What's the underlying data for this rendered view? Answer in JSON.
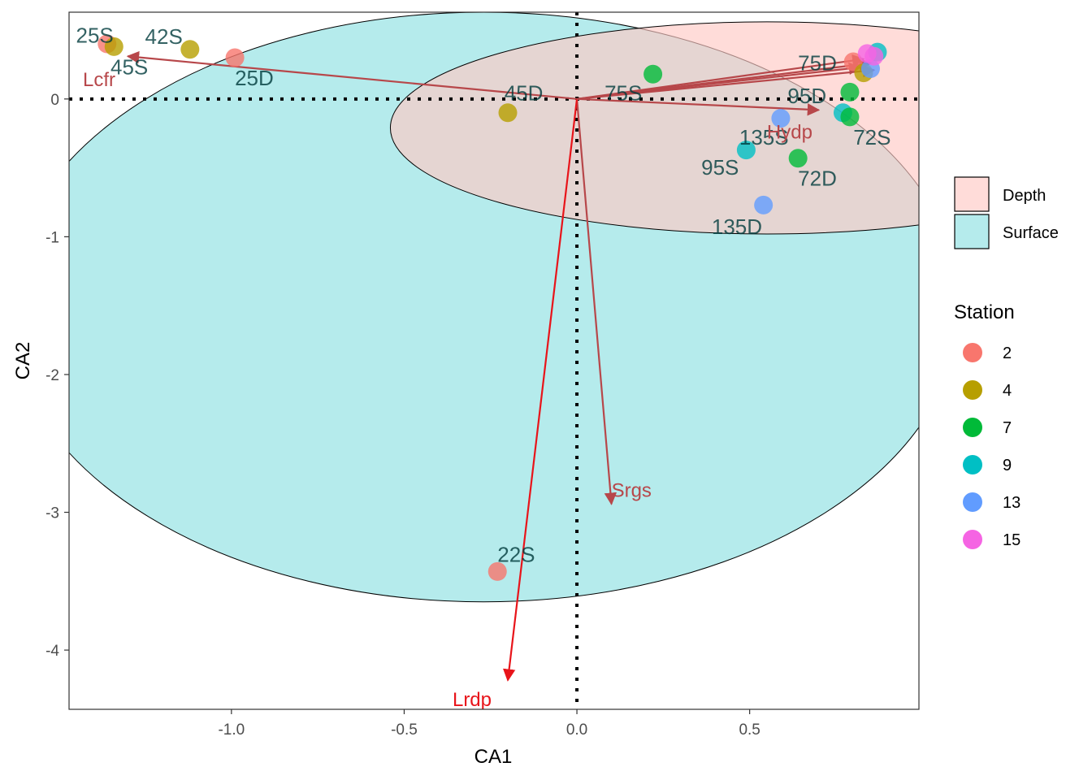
{
  "chart_data": {
    "type": "scatter",
    "xlabel": "CA1",
    "ylabel": "CA2",
    "xlim": [
      -1.47,
      0.99
    ],
    "ylim": [
      -4.43,
      0.63
    ],
    "x_ticks": [
      -1.0,
      -0.5,
      0.0,
      0.5
    ],
    "x_tick_labels": [
      "-1.0",
      "-0.5",
      "0.0",
      "0.5"
    ],
    "y_ticks": [
      -4,
      -3,
      -2,
      -1,
      0
    ],
    "y_tick_labels": [
      "-4",
      "-3",
      "-2",
      "-1",
      "0"
    ],
    "reference_lines": {
      "x": 0,
      "y": 0,
      "style": "dotted"
    },
    "grid": false,
    "fill_legend": {
      "title": "",
      "position": "right",
      "items": [
        {
          "label": "Depth",
          "fill": "#FFC9C5",
          "alpha": 0.65
        },
        {
          "label": "Surface",
          "fill": "#8DE0E2",
          "alpha": 0.65
        }
      ]
    },
    "station_legend": {
      "title": "Station",
      "position": "right",
      "items": [
        {
          "label": "2",
          "color": "#F8766D"
        },
        {
          "label": "4",
          "color": "#B79F00"
        },
        {
          "label": "7",
          "color": "#00BA38"
        },
        {
          "label": "9",
          "color": "#00BFC4"
        },
        {
          "label": "13",
          "color": "#619CFF"
        },
        {
          "label": "15",
          "color": "#F564E3"
        }
      ]
    },
    "ellipses": [
      {
        "group": "Surface",
        "cx": -0.27,
        "cy": -1.51,
        "rx": 1.38,
        "ry": 2.14,
        "fill": "#8DE0E2"
      },
      {
        "group": "Depth",
        "cx": 0.55,
        "cy": -0.21,
        "rx": 1.09,
        "ry": 0.77,
        "fill": "#FFC9C5"
      }
    ],
    "points": [
      {
        "x": -1.36,
        "y": 0.4,
        "station": "2"
      },
      {
        "x": -1.34,
        "y": 0.38,
        "station": "4"
      },
      {
        "x": -1.12,
        "y": 0.36,
        "station": "4"
      },
      {
        "x": -0.99,
        "y": 0.3,
        "station": "2"
      },
      {
        "x": -0.2,
        "y": -0.1,
        "station": "4"
      },
      {
        "x": 0.22,
        "y": 0.18,
        "station": "7"
      },
      {
        "x": 0.49,
        "y": -0.37,
        "station": "9"
      },
      {
        "x": 0.54,
        "y": -0.77,
        "station": "13"
      },
      {
        "x": 0.59,
        "y": -0.14,
        "station": "13"
      },
      {
        "x": 0.64,
        "y": -0.43,
        "station": "7"
      },
      {
        "x": 0.77,
        "y": -0.1,
        "station": "9"
      },
      {
        "x": 0.79,
        "y": -0.13,
        "station": "7"
      },
      {
        "x": 0.79,
        "y": 0.05,
        "station": "7"
      },
      {
        "x": 0.8,
        "y": 0.27,
        "station": "2"
      },
      {
        "x": 0.83,
        "y": 0.19,
        "station": "4"
      },
      {
        "x": 0.85,
        "y": 0.22,
        "station": "13"
      },
      {
        "x": 0.87,
        "y": 0.34,
        "station": "9"
      },
      {
        "x": 0.84,
        "y": 0.33,
        "station": "15"
      },
      {
        "x": 0.86,
        "y": 0.31,
        "station": "15"
      },
      {
        "x": -0.23,
        "y": -3.43,
        "station": "2"
      }
    ],
    "point_labels": [
      {
        "text": "25S",
        "x": -1.45,
        "y": 0.45
      },
      {
        "text": "42S",
        "x": -1.25,
        "y": 0.44
      },
      {
        "text": "45S",
        "x": -1.35,
        "y": 0.22
      },
      {
        "text": "25D",
        "x": -0.99,
        "y": 0.14
      },
      {
        "text": "45D",
        "x": -0.21,
        "y": 0.03
      },
      {
        "text": "75S",
        "x": 0.08,
        "y": 0.03
      },
      {
        "text": "75D",
        "x": 0.64,
        "y": 0.25
      },
      {
        "text": "95D",
        "x": 0.61,
        "y": 0.01
      },
      {
        "text": "135S",
        "x": 0.47,
        "y": -0.29
      },
      {
        "text": "72S",
        "x": 0.8,
        "y": -0.29
      },
      {
        "text": "95S",
        "x": 0.36,
        "y": -0.51
      },
      {
        "text": "72D",
        "x": 0.64,
        "y": -0.59
      },
      {
        "text": "135D",
        "x": 0.39,
        "y": -0.94
      },
      {
        "text": "22S",
        "x": -0.23,
        "y": -3.32
      }
    ],
    "arrows": [
      {
        "label": "Lcfr",
        "x": -1.3,
        "y": 0.31,
        "label_x": -1.43,
        "label_y": 0.13,
        "color": "#B7474A"
      },
      {
        "label": "Hydp",
        "x": 0.7,
        "y": -0.08,
        "label_x": 0.55,
        "label_y": -0.25,
        "color": "#B7474A"
      },
      {
        "label": "Srgs",
        "x": 0.1,
        "y": -2.94,
        "label_x": 0.1,
        "label_y": -2.85,
        "color": "#B7474A"
      },
      {
        "label": "Lrdp",
        "x": -0.2,
        "y": -4.22,
        "label_x": -0.36,
        "label_y": -4.37,
        "color": "#E8141A"
      },
      {
        "label": "",
        "x": 0.83,
        "y": 0.29,
        "color": "#B7474A"
      },
      {
        "label": "",
        "x": 0.85,
        "y": 0.26,
        "color": "#B7474A"
      },
      {
        "label": "",
        "x": 0.82,
        "y": 0.23,
        "color": "#B7474A"
      },
      {
        "label": "",
        "x": 0.86,
        "y": 0.21,
        "color": "#B7474A"
      }
    ]
  }
}
